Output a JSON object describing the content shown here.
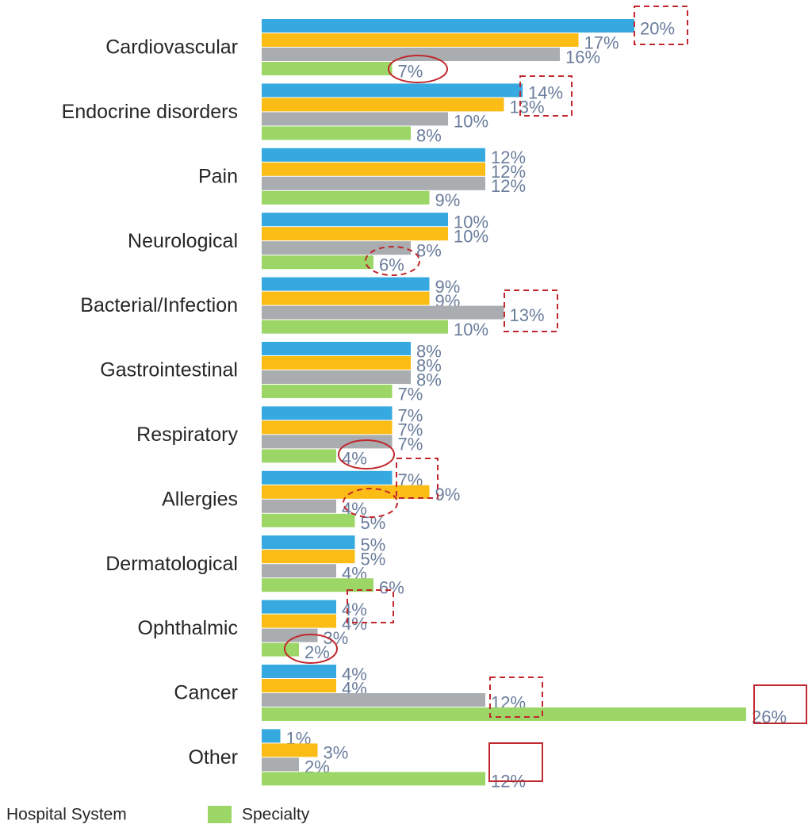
{
  "chart_data": {
    "type": "bar",
    "orientation": "horizontal",
    "categories": [
      "Cardiovascular",
      "Endocrine disorders",
      "Pain",
      "Neurological",
      "Bacterial/Infection",
      "Gastrointestinal",
      "Respiratory",
      "Allergies",
      "Dermatological",
      "Ophthalmic",
      "Cancer",
      "Other"
    ],
    "series": [
      {
        "color": "#35a9e0",
        "values": [
          20,
          14,
          12,
          10,
          9,
          8,
          7,
          7,
          5,
          4,
          4,
          1
        ],
        "value_labels": [
          "20%",
          "14%",
          "12%",
          "10%",
          "9%",
          "8%",
          "7%",
          "7%",
          "5%",
          "4%",
          "4%",
          "1%"
        ]
      },
      {
        "color": "#fbbc16",
        "values": [
          17,
          13,
          12,
          10,
          9,
          8,
          7,
          9,
          5,
          4,
          4,
          3
        ],
        "value_labels": [
          "17%",
          "13%",
          "12%",
          "10%",
          "9%",
          "8%",
          "7%",
          "9%",
          "5%",
          "4%",
          "4%",
          "3%"
        ]
      },
      {
        "name": "Hospital System",
        "color": "#a9adb0",
        "values": [
          16,
          10,
          12,
          8,
          13,
          8,
          7,
          4,
          4,
          3,
          12,
          2
        ],
        "value_labels": [
          "16%",
          "10%",
          "12%",
          "8%",
          "13%",
          "8%",
          "7%",
          "4%",
          "4%",
          "3%",
          "12%",
          "2%"
        ]
      },
      {
        "name": "Specialty",
        "color": "#9cd667",
        "values": [
          7,
          8,
          9,
          6,
          10,
          7,
          4,
          5,
          6,
          2,
          26,
          12
        ],
        "value_labels": [
          "7%",
          "8%",
          "9%",
          "6%",
          "10%",
          "7%",
          "4%",
          "5%",
          "6%",
          "2%",
          "26%",
          "12%"
        ]
      }
    ]
  }
}
